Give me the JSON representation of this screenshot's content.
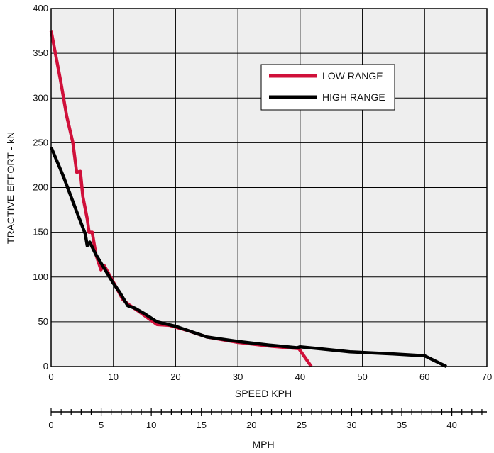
{
  "chart_data": {
    "type": "line",
    "xlabel": "SPEED KPH",
    "ylabel": "TRACTIVE EFFORT - kN",
    "x_ticks": [
      0,
      10,
      20,
      30,
      40,
      50,
      60,
      70
    ],
    "y_ticks": [
      0,
      50,
      100,
      150,
      200,
      250,
      300,
      350,
      400
    ],
    "xlim": [
      0,
      70
    ],
    "ylim": [
      0,
      400
    ],
    "grid": true,
    "plot_background": "#eeeeee",
    "legend_position": "upper-right-center",
    "series": [
      {
        "name": "LOW RANGE",
        "color": "#d0103a",
        "points": [
          [
            0,
            375
          ],
          [
            1.5,
            320
          ],
          [
            2.5,
            280
          ],
          [
            3.5,
            250
          ],
          [
            4.1,
            217
          ],
          [
            4.7,
            218
          ],
          [
            5.1,
            190
          ],
          [
            5.8,
            165
          ],
          [
            6.1,
            150
          ],
          [
            6.6,
            150
          ],
          [
            7.2,
            125
          ],
          [
            8,
            108
          ],
          [
            8.5,
            113
          ],
          [
            9,
            107
          ],
          [
            10.5,
            88
          ],
          [
            11.5,
            75
          ],
          [
            12.5,
            69
          ],
          [
            14,
            62
          ],
          [
            16,
            52
          ],
          [
            17,
            47
          ],
          [
            19,
            46
          ],
          [
            22,
            40
          ],
          [
            25,
            33
          ],
          [
            30,
            27
          ],
          [
            35,
            23
          ],
          [
            39.8,
            20
          ],
          [
            40.6,
            12
          ],
          [
            41.8,
            0
          ]
        ]
      },
      {
        "name": "HIGH RANGE",
        "color": "#000000",
        "points": [
          [
            0,
            245
          ],
          [
            2,
            212
          ],
          [
            4,
            175
          ],
          [
            5.5,
            148
          ],
          [
            5.8,
            135
          ],
          [
            6.2,
            139
          ],
          [
            7.2,
            125
          ],
          [
            8.5,
            110
          ],
          [
            10,
            93
          ],
          [
            11,
            83
          ],
          [
            12.3,
            68
          ],
          [
            13.5,
            65
          ],
          [
            15,
            59
          ],
          [
            17,
            50
          ],
          [
            20,
            45
          ],
          [
            25,
            33
          ],
          [
            30,
            28
          ],
          [
            35,
            24
          ],
          [
            39.5,
            21
          ],
          [
            40,
            22
          ],
          [
            43,
            20
          ],
          [
            48,
            16.5
          ],
          [
            55,
            14
          ],
          [
            60,
            12
          ],
          [
            63.5,
            0
          ]
        ]
      }
    ],
    "secondary_axis": {
      "label": "MPH",
      "ticks": [
        0,
        5,
        10,
        15,
        20,
        25,
        30,
        35,
        40
      ],
      "max": 43.5
    }
  }
}
